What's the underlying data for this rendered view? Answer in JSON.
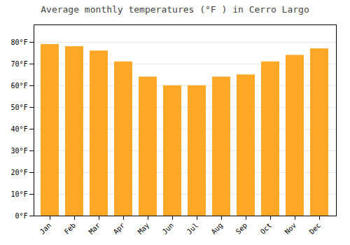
{
  "chart_data": {
    "type": "bar",
    "title": "Average monthly temperatures (°F ) in Cerro Largo",
    "categories": [
      "Jan",
      "Feb",
      "Mar",
      "Apr",
      "May",
      "Jun",
      "Jul",
      "Aug",
      "Sep",
      "Oct",
      "Nov",
      "Dec"
    ],
    "values": [
      79,
      78,
      76,
      71,
      64,
      60,
      60,
      64,
      65,
      71,
      74,
      77
    ],
    "color": "#FFA726",
    "ylim": [
      0,
      88
    ],
    "yticks": [
      {
        "value": 0,
        "label": "0°F"
      },
      {
        "value": 10,
        "label": "10°F"
      },
      {
        "value": 20,
        "label": "20°F"
      },
      {
        "value": 30,
        "label": "30°F"
      },
      {
        "value": 40,
        "label": "40°F"
      },
      {
        "value": 50,
        "label": "50°F"
      },
      {
        "value": 60,
        "label": "60°F"
      },
      {
        "value": 70,
        "label": "70°F"
      },
      {
        "value": 80,
        "label": "80°F"
      }
    ],
    "grid": true
  }
}
